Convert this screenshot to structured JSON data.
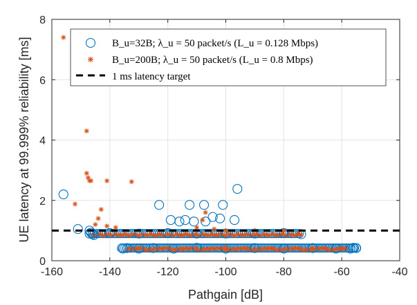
{
  "chart_data": {
    "type": "scatter",
    "xlabel": "Pathgain [dB]",
    "ylabel": "UE latency at 99.999% reliability [ms]",
    "xlim": [
      -160,
      -40
    ],
    "ylim": [
      0,
      8
    ],
    "xticks": [
      "-160",
      "-140",
      "-120",
      "-100",
      "-80",
      "-60",
      "-40"
    ],
    "yticks": [
      "0",
      "2",
      "4",
      "6",
      "8"
    ],
    "grid": true,
    "legend_position": "top-right",
    "series": [
      {
        "name": "B_u=32B; λ_u = 50 packet/s (L_u = 0.128 Mbps)",
        "marker": "circle",
        "color": "#0072BD",
        "points": [
          [
            -156,
            2.2
          ],
          [
            -151,
            1.05
          ],
          [
            -147,
            0.9
          ],
          [
            -146.5,
            0.93
          ],
          [
            -146,
            0.88
          ],
          [
            -147,
            1.0
          ],
          [
            -145.5,
            0.85
          ],
          [
            -123,
            1.85
          ],
          [
            -119,
            1.35
          ],
          [
            -116,
            1.3
          ],
          [
            -114,
            1.35
          ],
          [
            -112.5,
            1.85
          ],
          [
            -111,
            1.3
          ],
          [
            -107.5,
            1.85
          ],
          [
            -107,
            1.3
          ],
          [
            -104.5,
            1.45
          ],
          [
            -102,
            1.4
          ],
          [
            -101,
            1.85
          ],
          [
            -97,
            1.35
          ],
          [
            -96,
            2.38
          ],
          [
            -135.5,
            0.4
          ],
          [
            -134,
            0.42
          ],
          [
            -130,
            0.4
          ],
          [
            -125,
            0.42
          ],
          [
            -118,
            0.4
          ],
          [
            -110,
            0.43
          ],
          [
            -100,
            0.4
          ],
          [
            -90,
            0.42
          ],
          [
            -80,
            0.4
          ],
          [
            -70,
            0.42
          ],
          [
            -62,
            0.4
          ],
          [
            -56,
            0.43
          ],
          [
            -55,
            0.42
          ],
          [
            -57,
            0.4
          ],
          [
            -140,
            0.92
          ],
          [
            -130,
            0.9
          ],
          [
            -120,
            0.92
          ],
          [
            -110,
            0.9
          ],
          [
            -100,
            0.9
          ],
          [
            -90,
            0.9
          ],
          [
            -80,
            0.92
          ],
          [
            -74,
            0.88
          ]
        ]
      },
      {
        "name": "B_u=200B; λ_u = 50 packet/s (L_u = 0.8 Mbps)",
        "marker": "asterisk",
        "color": "#D95319",
        "points": [
          [
            -156,
            7.4
          ],
          [
            -148,
            4.3
          ],
          [
            -148,
            2.9
          ],
          [
            -147.5,
            2.75
          ],
          [
            -147,
            2.65
          ],
          [
            -146.5,
            2.65
          ],
          [
            -141,
            2.65
          ],
          [
            -132.5,
            2.62
          ],
          [
            -152,
            1.88
          ],
          [
            -143,
            1.7
          ],
          [
            -144,
            1.4
          ],
          [
            -145,
            1.2
          ],
          [
            -141,
            1.15
          ],
          [
            -138,
            1.1
          ],
          [
            -107,
            1.6
          ],
          [
            -108,
            1.35
          ],
          [
            -110,
            1.1
          ],
          [
            -104,
            1.05
          ],
          [
            -100,
            1.0
          ],
          [
            -90,
            1.0
          ],
          [
            -80,
            1.0
          ],
          [
            -75,
            0.9
          ],
          [
            -130,
            0.42
          ],
          [
            -115,
            0.42
          ],
          [
            -100,
            0.45
          ],
          [
            -85,
            0.42
          ],
          [
            -70,
            0.42
          ],
          [
            -60,
            0.42
          ]
        ]
      },
      {
        "name": "1 ms latency target",
        "marker": "dashed-line",
        "color": "#000000",
        "x": [
          -160,
          -40
        ],
        "y": [
          1,
          1
        ]
      }
    ]
  }
}
